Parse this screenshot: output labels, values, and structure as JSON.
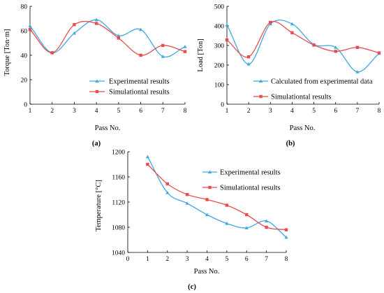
{
  "colors": {
    "experimental": "#3fa9e0",
    "simulation": "#e84c4c",
    "axis": "#000000"
  },
  "chart_data": [
    {
      "type": "line",
      "panel_label": "(a)",
      "xlabel": "Pass No.",
      "ylabel": "Torque [Ton·m]",
      "xlim": [
        1,
        8
      ],
      "ylim": [
        0,
        80
      ],
      "xticks": [
        "1",
        "2",
        "3",
        "4",
        "5",
        "6",
        "7",
        "8"
      ],
      "yticks": [
        "0",
        "20",
        "40",
        "60",
        "80"
      ],
      "x": [
        1,
        2,
        3,
        4,
        5,
        6,
        7,
        8
      ],
      "legend_position": "lower-right",
      "series": [
        {
          "name": "Experimental results",
          "color": "#3fa9e0",
          "marker": "triangle",
          "values": [
            64,
            42,
            58,
            69,
            56,
            61,
            39,
            47
          ]
        },
        {
          "name": "Simulationtal results",
          "color": "#e84c4c",
          "marker": "square",
          "values": [
            61,
            42,
            65,
            66,
            54,
            40,
            48,
            43
          ]
        }
      ]
    },
    {
      "type": "line",
      "panel_label": "(b)",
      "xlabel": "Pass No.",
      "ylabel": "Load [Ton]",
      "xlim": [
        1,
        8
      ],
      "ylim": [
        0,
        500
      ],
      "xticks": [
        "1",
        "2",
        "3",
        "4",
        "5",
        "6",
        "7",
        "8"
      ],
      "yticks": [
        "0",
        "100",
        "200",
        "300",
        "400",
        "500"
      ],
      "x": [
        1,
        2,
        3,
        4,
        5,
        6,
        7,
        8
      ],
      "legend_position": "lower-right",
      "series": [
        {
          "name": "Calculated from experimental data",
          "color": "#3fa9e0",
          "marker": "triangle",
          "values": [
            405,
            205,
            410,
            410,
            305,
            290,
            165,
            260
          ]
        },
        {
          "name": "Simulationtal results",
          "color": "#e84c4c",
          "marker": "square",
          "values": [
            328,
            242,
            418,
            365,
            302,
            270,
            290,
            262
          ]
        }
      ]
    },
    {
      "type": "line",
      "panel_label": "(c)",
      "xlabel": "Pass No.",
      "ylabel": "Temperature [°C]",
      "xlim": [
        0,
        8
      ],
      "ylim": [
        1040,
        1200
      ],
      "xticks": [
        "0",
        "1",
        "2",
        "3",
        "4",
        "5",
        "6",
        "7",
        "8"
      ],
      "yticks": [
        "1040",
        "1080",
        "1120",
        "1160",
        "1200"
      ],
      "x": [
        1,
        2,
        3,
        4,
        5,
        6,
        7,
        8
      ],
      "legend_position": "upper-right",
      "series": [
        {
          "name": "Experimental results",
          "color": "#3fa9e0",
          "marker": "triangle",
          "values": [
            1192,
            1135,
            1118,
            1100,
            1086,
            1079,
            1090,
            1064
          ]
        },
        {
          "name": "Simulationtal results",
          "color": "#e84c4c",
          "marker": "square",
          "values": [
            1180,
            1149,
            1132,
            1124,
            1115,
            1100,
            1080,
            1076
          ]
        }
      ]
    }
  ]
}
